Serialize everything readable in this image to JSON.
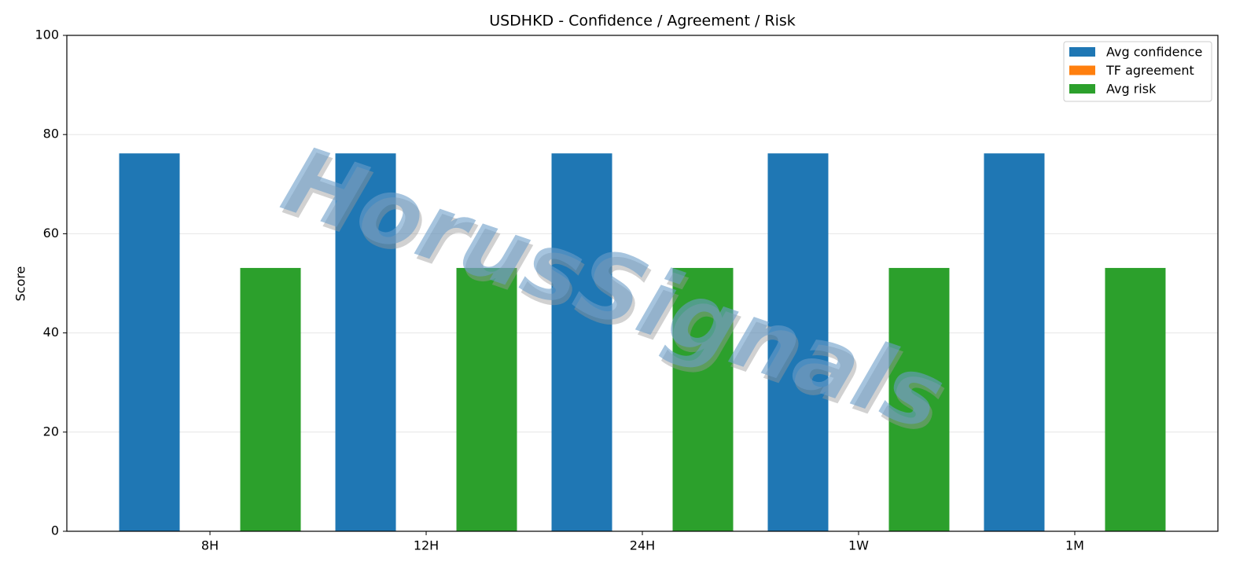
{
  "chart_data": {
    "type": "bar",
    "title": "USDHKD - Confidence / Agreement / Risk",
    "ylabel": "Score",
    "watermark": "HorusSignals",
    "categories": [
      "8H",
      "12H",
      "24H",
      "1W",
      "1M"
    ],
    "series": [
      {
        "name": "Avg confidence",
        "color": "#1f77b4",
        "values": [
          76.2,
          76.2,
          76.2,
          76.2,
          76.2
        ]
      },
      {
        "name": "TF agreement",
        "color": "#ff7f0e",
        "values": [
          0,
          0,
          0,
          0,
          0
        ]
      },
      {
        "name": "Avg risk",
        "color": "#2ca02c",
        "values": [
          53.1,
          53.1,
          53.1,
          53.1,
          53.1
        ]
      }
    ],
    "ylim": [
      0,
      100
    ],
    "yticks": [
      0,
      20,
      40,
      60,
      80,
      100
    ],
    "grid": true,
    "legend": "upper right"
  }
}
